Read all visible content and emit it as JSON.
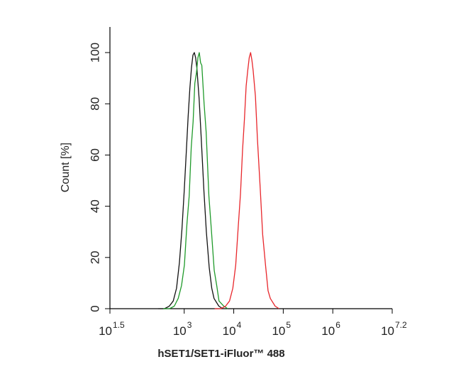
{
  "chart_data": {
    "type": "line",
    "xlabel": "hSET1/SET1-iFluor™ 488",
    "ylabel": "Count [%]",
    "xscale": "log",
    "xlim": [
      31.62,
      15848932
    ],
    "xticks": [
      {
        "value": 31.62,
        "label": "10",
        "exponent": "1.5"
      },
      {
        "value": 1000,
        "label": "10",
        "exponent": "3"
      },
      {
        "value": 10000,
        "label": "10",
        "exponent": "4"
      },
      {
        "value": 100000,
        "label": "10",
        "exponent": "5"
      },
      {
        "value": 1000000,
        "label": "10",
        "exponent": "6"
      },
      {
        "value": 15848932,
        "label": "10",
        "exponent": "7.2"
      }
    ],
    "ylim": [
      0,
      110
    ],
    "yticks": [
      0,
      20,
      40,
      60,
      80,
      100
    ],
    "series": [
      {
        "color": "#111111",
        "x": [
          300,
          400,
          500,
          600,
          700,
          800,
          900,
          1000,
          1100,
          1200,
          1300,
          1400,
          1500,
          1600,
          1700,
          1800,
          2000,
          2200,
          2500,
          2800,
          3200,
          3600,
          4000,
          5000,
          6000
        ],
        "values": [
          0,
          0,
          1,
          3,
          8,
          18,
          31,
          46,
          61,
          75,
          86,
          94,
          99,
          100,
          98,
          94,
          82,
          67,
          46,
          30,
          16,
          8,
          4,
          1,
          0
        ]
      },
      {
        "color": "#1f9a2a",
        "x": [
          378,
          504,
          630,
          756,
          882,
          1008,
          1134,
          1260,
          1386,
          1512,
          1638,
          1764,
          1890,
          2016,
          2142,
          2268,
          2520,
          2772,
          3150,
          3528,
          4032,
          4536,
          5040,
          6300,
          7560
        ],
        "values": [
          0,
          0,
          1,
          4,
          9,
          17,
          33,
          44,
          63,
          73,
          88,
          92,
          98,
          100,
          96,
          95,
          80,
          69,
          44,
          31,
          15,
          9,
          3,
          1,
          0
        ]
      },
      {
        "color": "#e8262b",
        "x": [
          4110,
          5480,
          6850,
          8220,
          9590,
          10960,
          12330,
          13700,
          15070,
          16440,
          17810,
          19180,
          20550,
          21920,
          23290,
          24660,
          27400,
          30140,
          34250,
          38360,
          43840,
          49320,
          54800,
          68500,
          82200
        ],
        "values": [
          0,
          0,
          1,
          3,
          8,
          17,
          32,
          45,
          62,
          74,
          87,
          93,
          98,
          100,
          97,
          93,
          83,
          66,
          47,
          29,
          17,
          7,
          4,
          1,
          0
        ]
      }
    ]
  }
}
